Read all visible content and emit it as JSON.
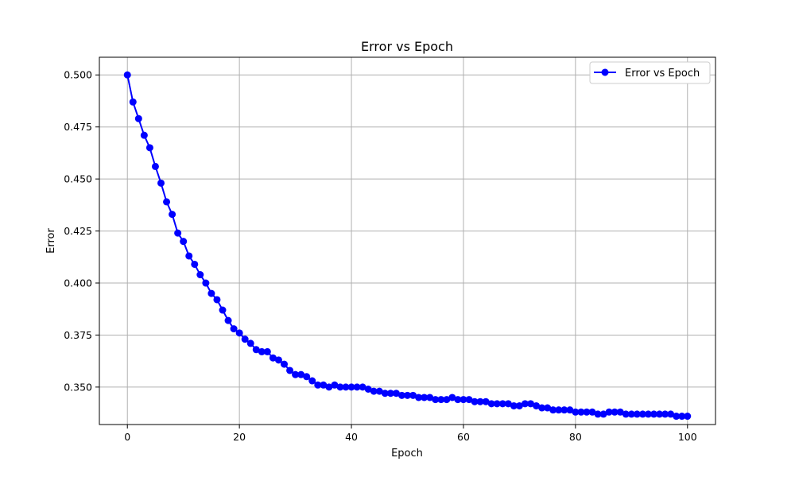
{
  "chart_data": {
    "type": "line",
    "title": "Error vs Epoch",
    "xlabel": "Epoch",
    "ylabel": "Error",
    "xlim": [
      -5,
      105
    ],
    "ylim": [
      0.332,
      0.5085
    ],
    "xticks": [
      0,
      20,
      40,
      60,
      80,
      100
    ],
    "yticks": [
      0.35,
      0.375,
      0.4,
      0.425,
      0.45,
      0.475,
      0.5
    ],
    "ytick_labels": [
      "0.350",
      "0.375",
      "0.400",
      "0.425",
      "0.450",
      "0.475",
      "0.500"
    ],
    "grid": true,
    "legend_position": "top-right",
    "series": [
      {
        "name": "Error vs Epoch",
        "color": "#0000ff",
        "marker": "circle",
        "x": [
          0,
          1,
          2,
          3,
          4,
          5,
          6,
          7,
          8,
          9,
          10,
          11,
          12,
          13,
          14,
          15,
          16,
          17,
          18,
          19,
          20,
          21,
          22,
          23,
          24,
          25,
          26,
          27,
          28,
          29,
          30,
          31,
          32,
          33,
          34,
          35,
          36,
          37,
          38,
          39,
          40,
          41,
          42,
          43,
          44,
          45,
          46,
          47,
          48,
          49,
          50,
          51,
          52,
          53,
          54,
          55,
          56,
          57,
          58,
          59,
          60,
          61,
          62,
          63,
          64,
          65,
          66,
          67,
          68,
          69,
          70,
          71,
          72,
          73,
          74,
          75,
          76,
          77,
          78,
          79,
          80,
          81,
          82,
          83,
          84,
          85,
          86,
          87,
          88,
          89,
          90,
          91,
          92,
          93,
          94,
          95,
          96,
          97,
          98,
          99,
          100
        ],
        "y": [
          0.5,
          0.487,
          0.479,
          0.471,
          0.465,
          0.456,
          0.448,
          0.439,
          0.433,
          0.424,
          0.42,
          0.413,
          0.409,
          0.404,
          0.4,
          0.395,
          0.392,
          0.387,
          0.382,
          0.378,
          0.376,
          0.373,
          0.371,
          0.368,
          0.367,
          0.367,
          0.364,
          0.363,
          0.361,
          0.358,
          0.356,
          0.356,
          0.355,
          0.353,
          0.351,
          0.351,
          0.35,
          0.351,
          0.35,
          0.35,
          0.35,
          0.35,
          0.35,
          0.349,
          0.348,
          0.348,
          0.347,
          0.347,
          0.347,
          0.346,
          0.346,
          0.346,
          0.345,
          0.345,
          0.345,
          0.344,
          0.344,
          0.344,
          0.345,
          0.344,
          0.344,
          0.344,
          0.343,
          0.343,
          0.343,
          0.342,
          0.342,
          0.342,
          0.342,
          0.341,
          0.341,
          0.342,
          0.342,
          0.341,
          0.34,
          0.34,
          0.339,
          0.339,
          0.339,
          0.339,
          0.338,
          0.338,
          0.338,
          0.338,
          0.337,
          0.337,
          0.338,
          0.338,
          0.338,
          0.337,
          0.337,
          0.337,
          0.337,
          0.337,
          0.337,
          0.337,
          0.337,
          0.337,
          0.336,
          0.336,
          0.336
        ]
      }
    ]
  }
}
